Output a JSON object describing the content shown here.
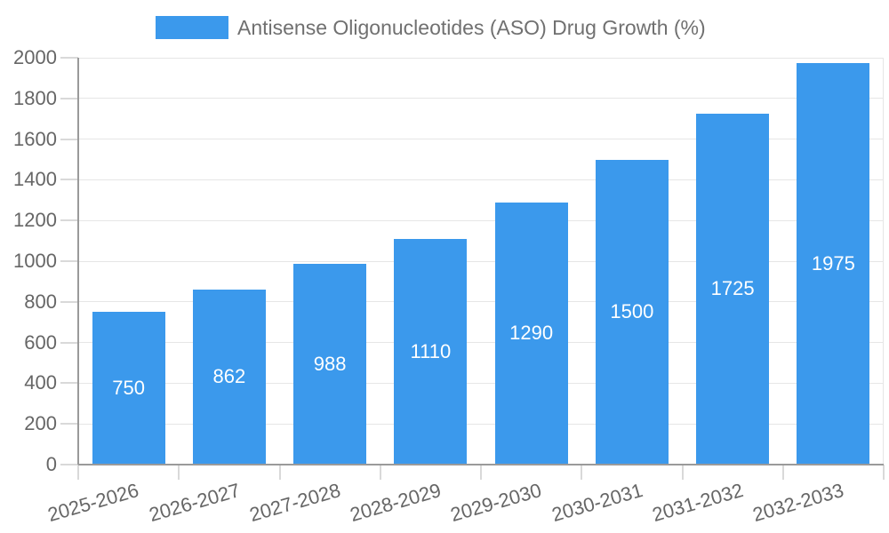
{
  "chart_data": {
    "type": "bar",
    "title": "Antisense Oligonucleotides (ASO) Drug Growth (%)",
    "series_name": "Antisense Oligonucleotides (ASO) Drug Growth (%)",
    "categories": [
      "2025-2026",
      "2026-2027",
      "2027-2028",
      "2028-2029",
      "2029-2030",
      "2030-2031",
      "2031-2032",
      "2032-2033"
    ],
    "values": [
      750,
      862,
      988,
      1110,
      1290,
      1500,
      1725,
      1975
    ],
    "value_labels": [
      "750",
      "862",
      "988",
      "1110",
      "1290",
      "1500",
      "1725",
      "1975"
    ],
    "xlabel": "",
    "ylabel": "",
    "ylim": [
      0,
      2000
    ],
    "yticks": [
      0,
      200,
      400,
      600,
      800,
      1000,
      1200,
      1400,
      1600,
      1800,
      2000
    ],
    "ytick_labels": [
      "0",
      "200",
      "400",
      "600",
      "800",
      "1000",
      "1200",
      "1400",
      "1600",
      "1800",
      "2000"
    ],
    "grid": true,
    "legend_position": "top",
    "colors": {
      "bar": "#3B99EC",
      "value_label": "#FFFFFF",
      "axis_text": "#666666",
      "legend_text": "#707070",
      "grid_line": "#E6E6E6",
      "axis_line": "#9A9A9A",
      "tick": "#D9D9D9",
      "background": "#FFFFFF"
    }
  }
}
